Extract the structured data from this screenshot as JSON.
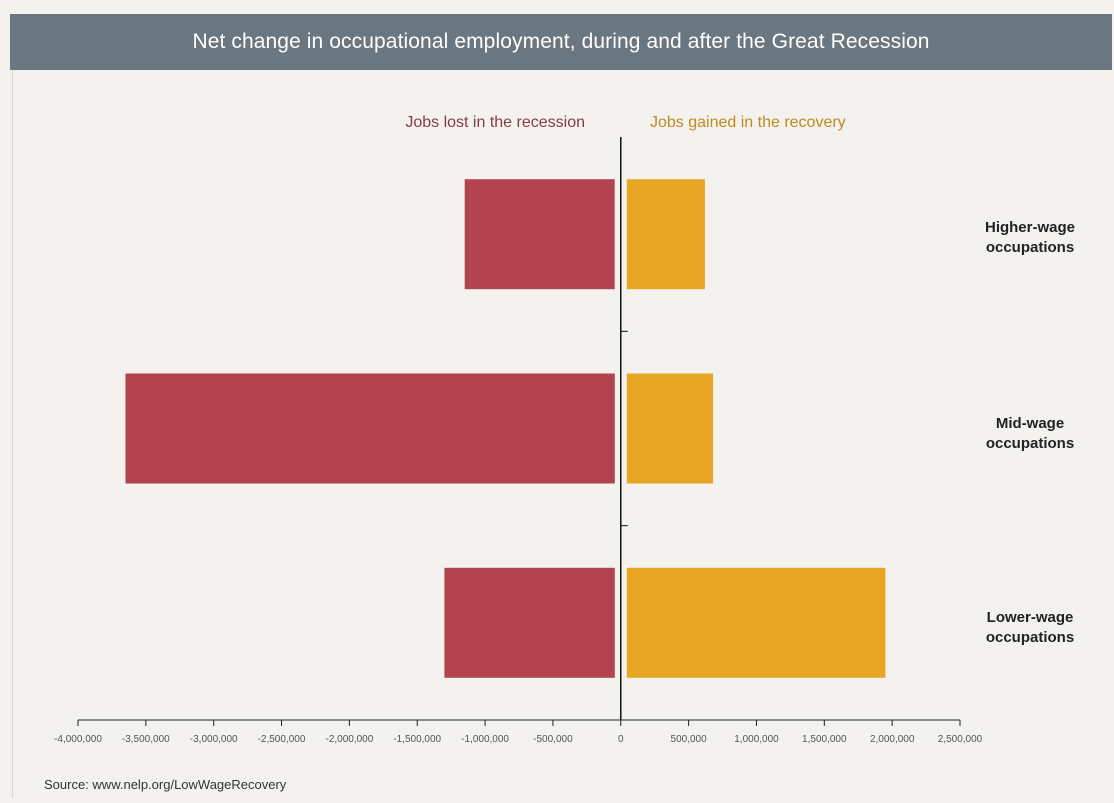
{
  "chart_data": {
    "type": "bar",
    "orientation": "horizontal",
    "title": "Net change in occupational employment, during and after the Great Recession",
    "categories": [
      "Higher-wage occupations",
      "Mid-wage occupations",
      "Lower-wage occupations"
    ],
    "category_lines": [
      [
        "Higher-wage",
        "occupations"
      ],
      [
        "Mid-wage",
        "occupations"
      ],
      [
        "Lower-wage",
        "occupations"
      ]
    ],
    "series": [
      {
        "name": "Jobs lost in the recession",
        "values": [
          -1150000,
          -3650000,
          -1300000
        ],
        "color": "#b2434f"
      },
      {
        "name": "Jobs gained in the recovery",
        "values": [
          620000,
          680000,
          1950000
        ],
        "color": "#e9a524"
      }
    ],
    "xlim": [
      -4000000,
      2500000
    ],
    "xticks": [
      -4000000,
      -3500000,
      -3000000,
      -2500000,
      -2000000,
      -1500000,
      -1000000,
      -500000,
      0,
      500000,
      1000000,
      1500000,
      2000000,
      2500000
    ],
    "xtick_labels": [
      "-4,000,000",
      "-3,500,000",
      "-3,000,000",
      "-2,500,000",
      "-2,000,000",
      "-1,500,000",
      "-1,000,000",
      "-500,000",
      "0",
      "500,000",
      "1,000,000",
      "1,500,000",
      "2,000,000",
      "2,500,000"
    ],
    "legend_placement": "top-center",
    "grid": false
  },
  "source": "Source: www.nelp.org/LowWageRecovery"
}
